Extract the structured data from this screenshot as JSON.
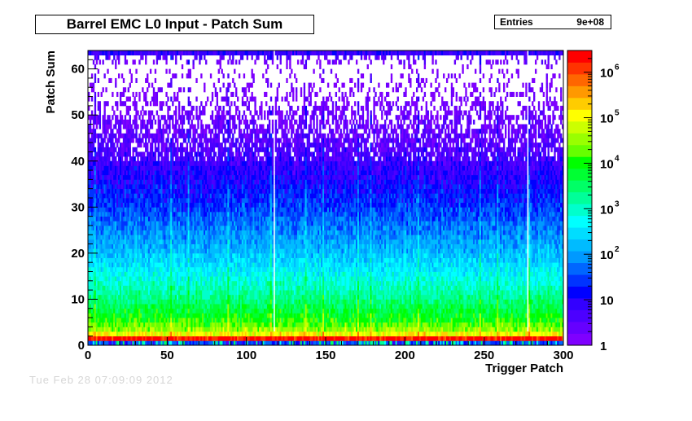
{
  "title": "Barrel EMC L0 Input - Patch Sum",
  "stats": {
    "label": "Entries",
    "value": "9e+08"
  },
  "footer_date": "Tue Feb 28 07:09:09 2012",
  "chart_data": {
    "type": "heatmap",
    "title": "Barrel EMC L0 Input - Patch Sum",
    "xlabel": "Trigger Patch",
    "ylabel": "Patch Sum",
    "xlim": [
      0,
      300
    ],
    "ylim": [
      0,
      64
    ],
    "x_ticks": [
      0,
      50,
      100,
      150,
      200,
      250,
      300
    ],
    "y_ticks": [
      0,
      10,
      20,
      30,
      40,
      50,
      60
    ],
    "z_scale": "log",
    "zlim": [
      1,
      3000000
    ],
    "z_ticks": [
      {
        "value": 1,
        "base": "1",
        "exp": ""
      },
      {
        "value": 10,
        "base": "10",
        "exp": ""
      },
      {
        "value": 100,
        "base": "10",
        "exp": "2"
      },
      {
        "value": 1000,
        "base": "10",
        "exp": "3"
      },
      {
        "value": 10000,
        "base": "10",
        "exp": "4"
      },
      {
        "value": 100000,
        "base": "10",
        "exp": "5"
      },
      {
        "value": 1000000,
        "base": "10",
        "exp": "6"
      }
    ],
    "n_patches": 300,
    "n_sum_bins": 64,
    "entries": "9e+08",
    "profile_by_patch_sum": [
      {
        "patch_sum": 0,
        "typical_count": 20
      },
      {
        "patch_sum": 1,
        "typical_count": 2000000
      },
      {
        "patch_sum": 2,
        "typical_count": 100000
      },
      {
        "patch_sum": 3,
        "typical_count": 30000
      },
      {
        "patch_sum": 5,
        "typical_count": 10000
      },
      {
        "patch_sum": 10,
        "typical_count": 2000
      },
      {
        "patch_sum": 15,
        "typical_count": 500
      },
      {
        "patch_sum": 20,
        "typical_count": 150
      },
      {
        "patch_sum": 30,
        "typical_count": 25
      },
      {
        "patch_sum": 40,
        "typical_count": 5
      },
      {
        "patch_sum": 50,
        "typical_count": 1.5
      },
      {
        "patch_sum": 60,
        "typical_count": 0.6
      },
      {
        "patch_sum": 63,
        "typical_count": 8
      }
    ],
    "hot_patches": [
      4,
      52,
      63,
      88,
      115,
      137,
      148,
      170,
      178,
      208,
      247,
      258,
      278
    ],
    "dead_patches": [
      117,
      277
    ],
    "palette": [
      "#7f00ff",
      "#6600ff",
      "#4c00ff",
      "#3300ff",
      "#0000ff",
      "#0033ff",
      "#0066ff",
      "#0099ff",
      "#00bbff",
      "#00ddff",
      "#00ffff",
      "#00ffcc",
      "#00ff99",
      "#00ff66",
      "#00ff33",
      "#00ff00",
      "#66ff00",
      "#99ff00",
      "#ccff00",
      "#ffff00",
      "#ffcc00",
      "#ff9900",
      "#ff6600",
      "#ff3300",
      "#ff0000"
    ]
  }
}
